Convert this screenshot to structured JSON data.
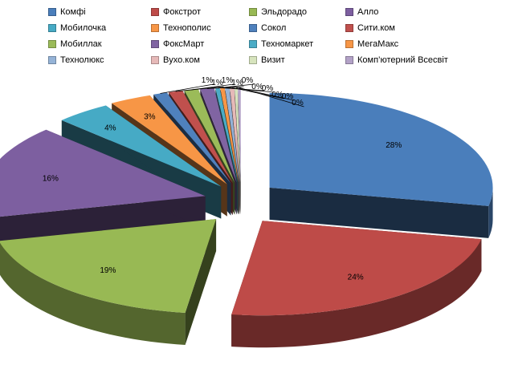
{
  "chart_data": {
    "type": "pie",
    "title": "",
    "legend_position": "top",
    "label_format": "percent",
    "categories": [
      "Комфі",
      "Фокстрот",
      "Эльдорадо",
      "Алло",
      "Мобилочка",
      "Технополис",
      "Сокол",
      "Сити.ком",
      "Мобиллак",
      "ФоксМарт",
      "Техномаркет",
      "МегаМакс",
      "Технолюкс",
      "Вухо.ком",
      "Визит",
      "Комп’ютерний Всесвіт"
    ],
    "values": [
      28,
      24,
      19,
      16,
      4,
      3,
      1,
      1,
      1,
      1,
      0.3,
      0.3,
      0.3,
      0.3,
      0.2,
      0.2
    ],
    "labels": [
      "28%",
      "24%",
      "19%",
      "16%",
      "4%",
      "3%",
      "1%",
      "1%",
      "1%",
      "1%",
      "0%",
      "0%",
      "0%",
      "0%",
      "0%",
      "0%"
    ],
    "colors": [
      "#4a7ebb",
      "#be4b48",
      "#98b954",
      "#7d5fa0",
      "#46aac5",
      "#f79646",
      "#4f81bd",
      "#c0504d",
      "#9bbb59",
      "#8064a2",
      "#4bacc6",
      "#f79646",
      "#95b3d7",
      "#e6b9b8",
      "#d7e4bd",
      "#b3a2c7"
    ]
  }
}
